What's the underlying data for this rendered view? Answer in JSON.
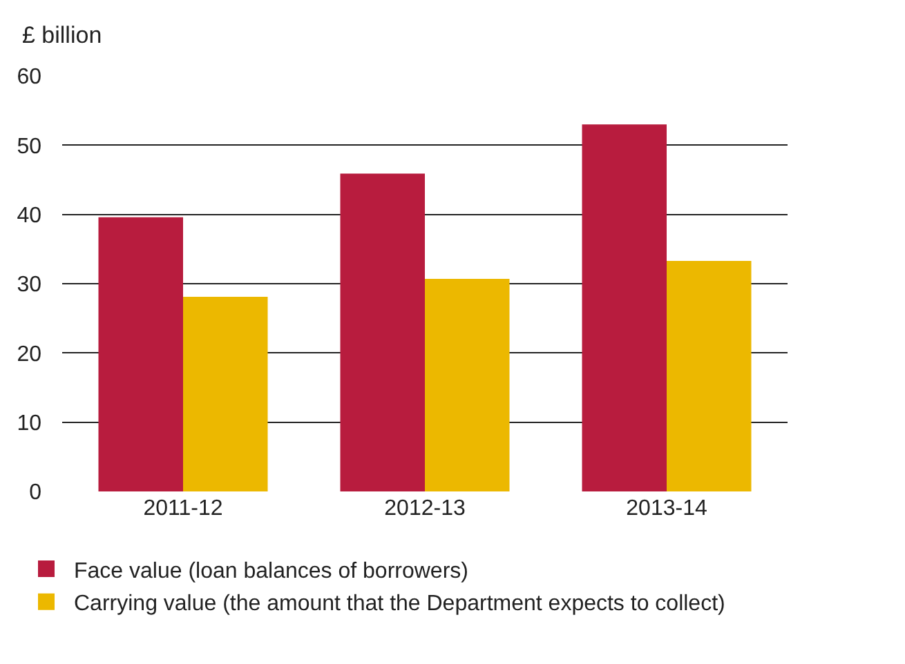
{
  "chart_data": {
    "type": "bar",
    "ylabel": "£ billion",
    "categories": [
      "2011-12",
      "2012-13",
      "2013-14"
    ],
    "series": [
      {
        "name": "Face value (loan balances of borrowers)",
        "color": "#b81c3e",
        "values": [
          39.6,
          45.9,
          53.0
        ]
      },
      {
        "name": "Carrying value (the amount that the Department expects to collect)",
        "color": "#ecb800",
        "values": [
          28.1,
          30.7,
          33.3
        ]
      }
    ],
    "ylim": [
      0,
      60
    ],
    "yticks": [
      0,
      10,
      20,
      30,
      40,
      50,
      60
    ],
    "grid": "y",
    "legend": "bottom"
  }
}
